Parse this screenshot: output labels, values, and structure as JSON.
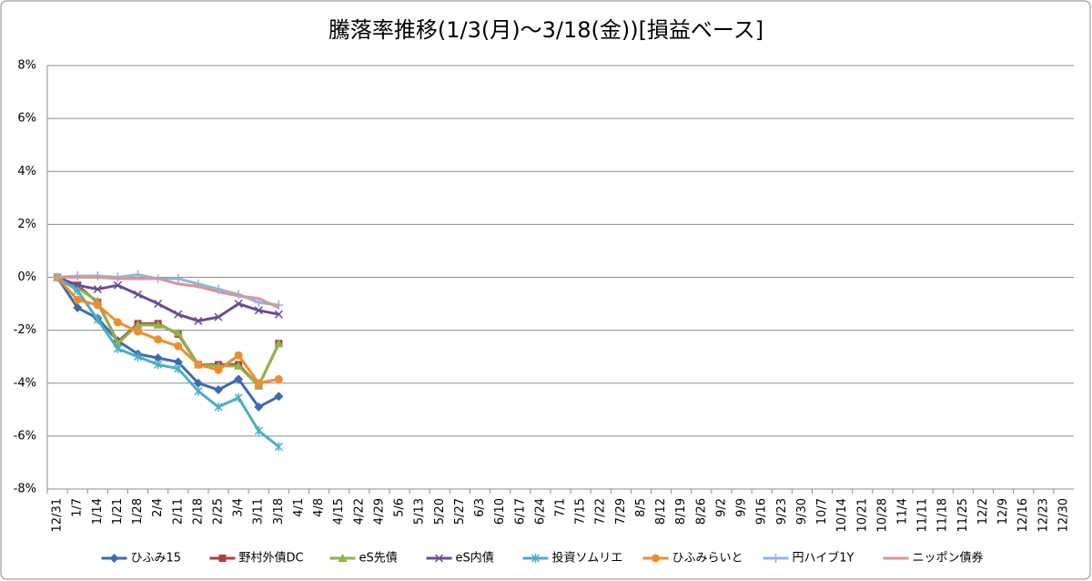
{
  "chart_data": {
    "type": "line",
    "title": "騰落率推移(1/3(月)～3/18(金))[損益ベース]",
    "categories": [
      "12/31",
      "1/7",
      "1/14",
      "1/21",
      "1/28",
      "2/4",
      "2/11",
      "2/18",
      "2/25",
      "3/4",
      "3/11",
      "3/18",
      "4/1",
      "4/8",
      "4/15",
      "4/22",
      "4/29",
      "5/6",
      "5/13",
      "5/20",
      "5/27",
      "6/3",
      "6/10",
      "6/17",
      "6/24",
      "7/1",
      "7/15",
      "7/22",
      "7/29",
      "8/5",
      "8/12",
      "8/19",
      "8/26",
      "9/2",
      "9/9",
      "9/16",
      "9/23",
      "9/30",
      "10/7",
      "10/14",
      "10/21",
      "10/28",
      "11/4",
      "11/11",
      "11/18",
      "11/25",
      "12/2",
      "12/9",
      "12/16",
      "12/23",
      "12/30"
    ],
    "ylim": [
      -8,
      8
    ],
    "yticks": [
      {
        "value": -8,
        "label": "-8%"
      },
      {
        "value": -6,
        "label": "-6%"
      },
      {
        "value": -4,
        "label": "-4%"
      },
      {
        "value": -2,
        "label": "-2%"
      },
      {
        "value": 0,
        "label": "0%"
      },
      {
        "value": 2,
        "label": "2%"
      },
      {
        "value": 4,
        "label": "4%"
      },
      {
        "value": 6,
        "label": "6%"
      },
      {
        "value": 8,
        "label": "8%"
      }
    ],
    "grid": true,
    "legend": "bottom",
    "series": [
      {
        "name": "ひふみ15",
        "color": "#3b6bb3",
        "marker": "diamond",
        "values": [
          0,
          -1.15,
          -1.55,
          -2.4,
          -2.9,
          -3.05,
          -3.2,
          -4.0,
          -4.25,
          -3.85,
          -4.9,
          -4.5,
          null,
          null,
          null,
          null,
          null,
          null,
          null,
          null,
          null,
          null,
          null,
          null,
          null,
          null,
          null,
          null,
          null,
          null,
          null,
          null,
          null,
          null,
          null,
          null,
          null,
          null,
          null,
          null,
          null,
          null,
          null,
          null,
          null,
          null,
          null,
          null,
          null,
          null,
          null
        ]
      },
      {
        "name": "野村外債DC",
        "color": "#b33d3a",
        "marker": "square",
        "values": [
          0,
          -0.3,
          -0.95,
          -2.45,
          -1.75,
          -1.75,
          -2.15,
          -3.3,
          -3.3,
          -3.3,
          -4.1,
          -2.5,
          null,
          null,
          null,
          null,
          null,
          null,
          null,
          null,
          null,
          null,
          null,
          null,
          null,
          null,
          null,
          null,
          null,
          null,
          null,
          null,
          null,
          null,
          null,
          null,
          null,
          null,
          null,
          null,
          null,
          null,
          null,
          null,
          null,
          null,
          null,
          null,
          null,
          null,
          null
        ]
      },
      {
        "name": "eS先債",
        "color": "#8db448",
        "marker": "triangle",
        "values": [
          0,
          -0.4,
          -0.9,
          -2.5,
          -1.8,
          -1.8,
          -2.1,
          -3.3,
          -3.35,
          -3.35,
          -4.1,
          -2.5,
          null,
          null,
          null,
          null,
          null,
          null,
          null,
          null,
          null,
          null,
          null,
          null,
          null,
          null,
          null,
          null,
          null,
          null,
          null,
          null,
          null,
          null,
          null,
          null,
          null,
          null,
          null,
          null,
          null,
          null,
          null,
          null,
          null,
          null,
          null,
          null,
          null,
          null,
          null
        ]
      },
      {
        "name": "eS内債",
        "color": "#6d4b95",
        "marker": "x",
        "values": [
          0,
          -0.3,
          -0.45,
          -0.3,
          -0.65,
          -1.0,
          -1.4,
          -1.65,
          -1.5,
          -1.0,
          -1.25,
          -1.4,
          null,
          null,
          null,
          null,
          null,
          null,
          null,
          null,
          null,
          null,
          null,
          null,
          null,
          null,
          null,
          null,
          null,
          null,
          null,
          null,
          null,
          null,
          null,
          null,
          null,
          null,
          null,
          null,
          null,
          null,
          null,
          null,
          null,
          null,
          null,
          null,
          null,
          null,
          null
        ]
      },
      {
        "name": "投資ソムリエ",
        "color": "#4aaec8",
        "marker": "star",
        "values": [
          0,
          -0.5,
          -1.6,
          -2.7,
          -3.0,
          -3.3,
          -3.45,
          -4.3,
          -4.9,
          -4.55,
          -5.8,
          -6.4,
          null,
          null,
          null,
          null,
          null,
          null,
          null,
          null,
          null,
          null,
          null,
          null,
          null,
          null,
          null,
          null,
          null,
          null,
          null,
          null,
          null,
          null,
          null,
          null,
          null,
          null,
          null,
          null,
          null,
          null,
          null,
          null,
          null,
          null,
          null,
          null,
          null,
          null,
          null
        ]
      },
      {
        "name": "ひふみらいと",
        "color": "#f08c30",
        "marker": "circle",
        "values": [
          0,
          -0.85,
          -1.05,
          -1.7,
          -2.05,
          -2.35,
          -2.6,
          -3.3,
          -3.5,
          -2.95,
          -4.0,
          -3.85,
          null,
          null,
          null,
          null,
          null,
          null,
          null,
          null,
          null,
          null,
          null,
          null,
          null,
          null,
          null,
          null,
          null,
          null,
          null,
          null,
          null,
          null,
          null,
          null,
          null,
          null,
          null,
          null,
          null,
          null,
          null,
          null,
          null,
          null,
          null,
          null,
          null,
          null,
          null
        ]
      },
      {
        "name": "円ハイブ1Y",
        "color": "#8fb4e2",
        "marker": "plus",
        "values": [
          0,
          0.05,
          0.05,
          0.0,
          0.1,
          -0.05,
          -0.05,
          -0.25,
          -0.45,
          -0.65,
          -0.95,
          -1.05,
          null,
          null,
          null,
          null,
          null,
          null,
          null,
          null,
          null,
          null,
          null,
          null,
          null,
          null,
          null,
          null,
          null,
          null,
          null,
          null,
          null,
          null,
          null,
          null,
          null,
          null,
          null,
          null,
          null,
          null,
          null,
          null,
          null,
          null,
          null,
          null,
          null,
          null,
          null
        ]
      },
      {
        "name": "ニッポン債券",
        "color": "#d99694",
        "marker": "none",
        "values": [
          0,
          0.0,
          0.0,
          -0.05,
          -0.05,
          -0.05,
          -0.25,
          -0.35,
          -0.55,
          -0.7,
          -0.8,
          -1.15,
          null,
          null,
          null,
          null,
          null,
          null,
          null,
          null,
          null,
          null,
          null,
          null,
          null,
          null,
          null,
          null,
          null,
          null,
          null,
          null,
          null,
          null,
          null,
          null,
          null,
          null,
          null,
          null,
          null,
          null,
          null,
          null,
          null,
          null,
          null,
          null,
          null,
          null,
          null
        ]
      }
    ]
  }
}
